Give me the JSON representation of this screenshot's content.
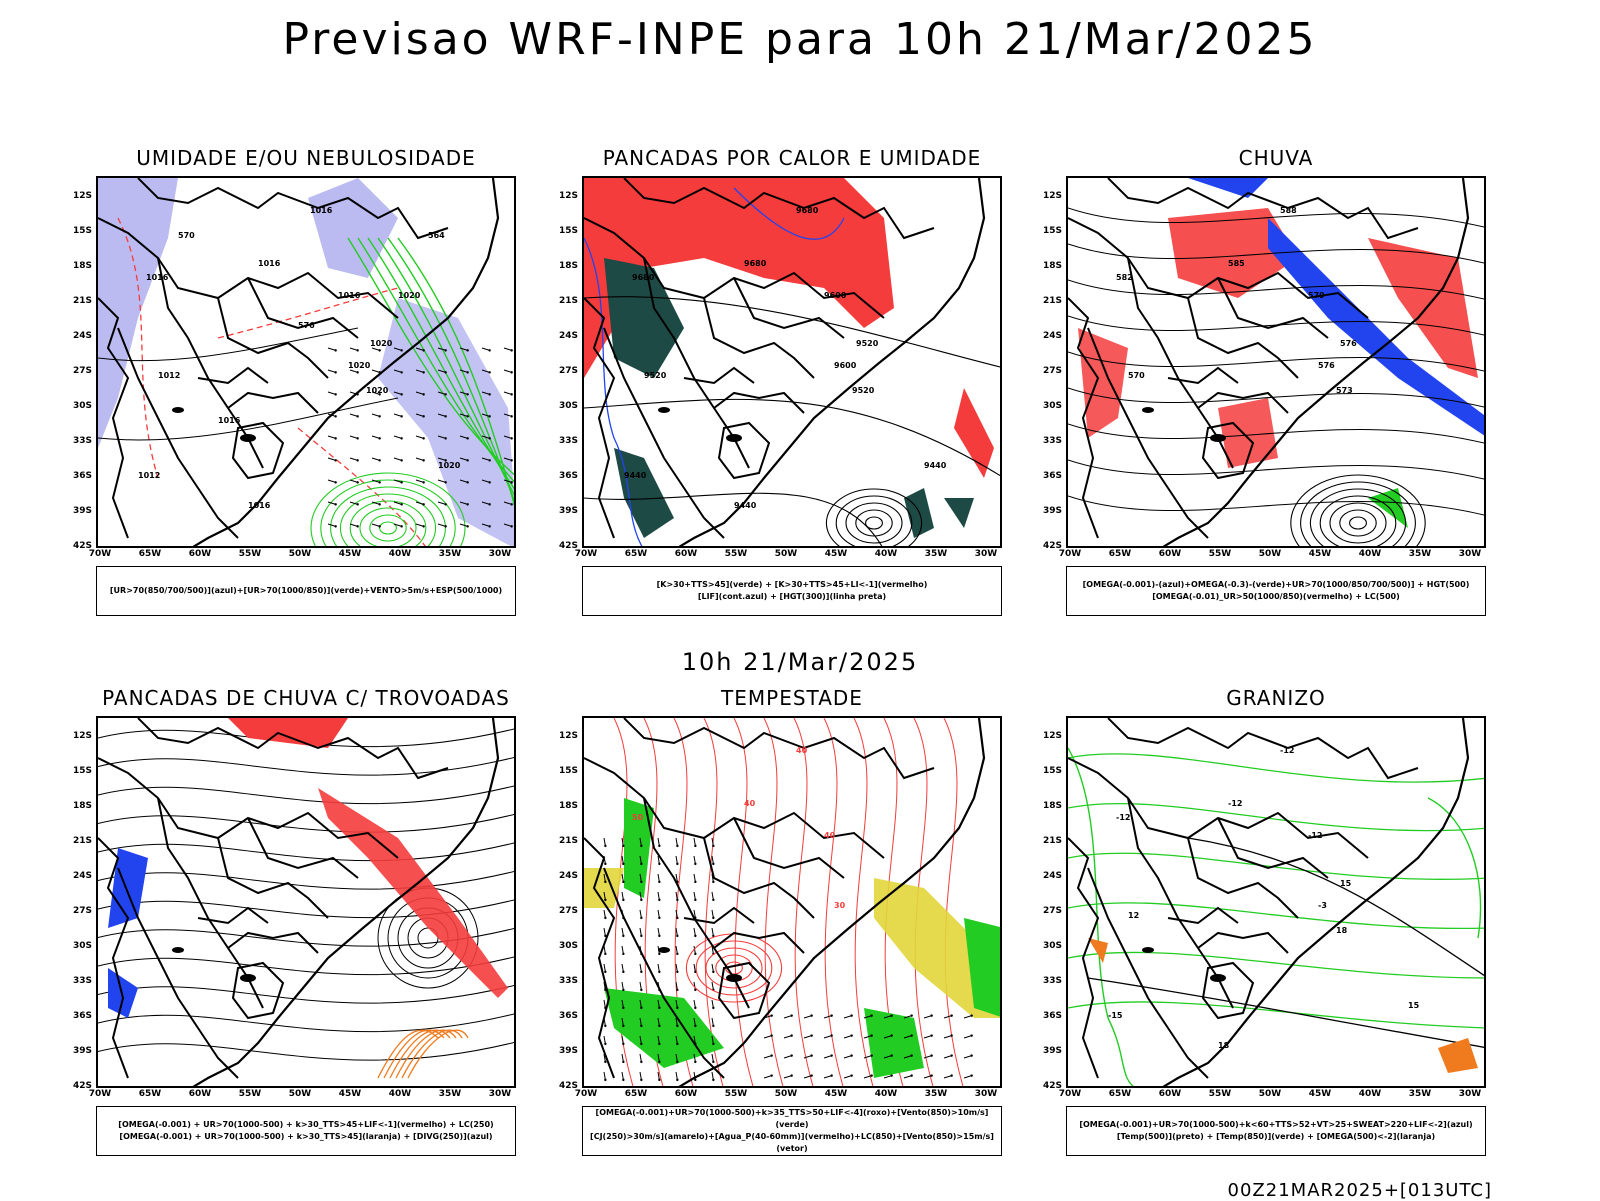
{
  "header": {
    "title": "Previsao WRF-INPE  para 10h 21/Mar/2025"
  },
  "middle": {
    "title": "10h 21/Mar/2025"
  },
  "footer": {
    "run": "00Z21MAR2025+[013UTC]"
  },
  "axes": {
    "lat_labels": [
      "12S",
      "15S",
      "18S",
      "21S",
      "24S",
      "27S",
      "30S",
      "33S",
      "36S",
      "39S",
      "42S"
    ],
    "lon_labels": [
      "70W",
      "65W",
      "60W",
      "55W",
      "50W",
      "45W",
      "40W",
      "35W",
      "30W"
    ]
  },
  "colors": {
    "blue": "#2244ee",
    "green": "#22cc22",
    "red": "#f43c3c",
    "lavender": "#aaaaee",
    "dark_teal": "#1e4a46",
    "yellow": "#e2d63a",
    "orange": "#f07a1e",
    "black": "#000000"
  },
  "panels": [
    {
      "id": "umidade",
      "title": "UMIDADE E/OU NEBULOSIDADE",
      "legend": [
        "[UR>70(850/700/500)](azul)+[UR>70(1000/850)](verde)+VENTO>5m/s+ESP(500/1000)"
      ],
      "contour_labels": [
        "1016",
        "1016",
        "1016",
        "1016",
        "1020",
        "1020",
        "1020",
        "1012",
        "1016",
        "1020",
        "1012",
        "1016",
        "1020",
        "570",
        "564",
        "576"
      ]
    },
    {
      "id": "pancadas-calor",
      "title": "PANCADAS POR CALOR E UMIDADE",
      "legend": [
        "[K>30+TTS>45](verde) + [K>30+TTS>45+LI<-1](vermelho)",
        "[LIF](cont.azul) + [HGT(300)](linha preta)"
      ],
      "contour_labels": [
        "9680",
        "9680",
        "9680",
        "9600",
        "9600",
        "9520",
        "9520",
        "9520",
        "9440",
        "9440",
        "9440"
      ]
    },
    {
      "id": "chuva",
      "title": "CHUVA",
      "legend": [
        "[OMEGA(-0.001)-(azul)+OMEGA(-0.3)-(verde)+UR>70(1000/850/700/500)] + HGT(500)",
        "[OMEGA(-0.01)_UR>50(1000/850)(vermelho) + LC(500)"
      ],
      "contour_labels": [
        "588",
        "585",
        "582",
        "579",
        "576",
        "576",
        "573",
        "570"
      ]
    },
    {
      "id": "trovoadas",
      "title": "PANCADAS DE CHUVA C/ TROVOADAS",
      "legend": [
        "[OMEGA(-0.001) + UR>70(1000-500) + k>30_TTS>45+LIF<-1](vermelho) + LC(250)",
        "[OMEGA(-0.001) + UR>70(1000-500) + k>30_TTS>45](laranja) + [DIVG(250)](azul)"
      ],
      "contour_labels": []
    },
    {
      "id": "tempestade",
      "title": "TEMPESTADE",
      "legend": [
        "[OMEGA(-0.001)+UR>70(1000-500)+k>35_TTS>50+LIF<-4](roxo)+[Vento(850)>10m/s](verde)",
        "[CJ(250)>30m/s](amarelo)+[Agua_P(40-60mm)](vermelho)+LC(850)+[Vento(850)>15m/s](vetor)"
      ],
      "contour_labels": [
        "40",
        "40",
        "50",
        "40",
        "30"
      ]
    },
    {
      "id": "granizo",
      "title": "GRANIZO",
      "legend": [
        "[OMEGA(-0.001)+UR>70(1000-500)+k<60+TTS>52+VT>25+SWEAT>220+LIF<-2](azul)",
        "[Temp(500)](preto) + [Temp(850)](verde) + [OMEGA(500)<-2](laranja)"
      ],
      "contour_labels": [
        "-12",
        "-12",
        "-12",
        "-12",
        "-3",
        "15",
        "18",
        "12",
        "18",
        "15",
        "-15"
      ]
    }
  ]
}
